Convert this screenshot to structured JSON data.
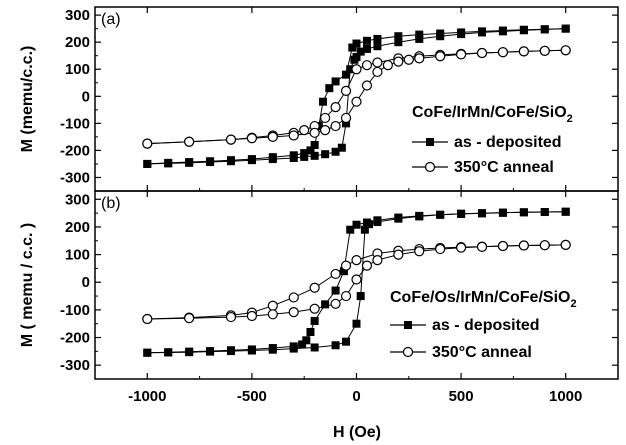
{
  "chart_data": [
    {
      "type": "line",
      "panel_label": "(a)",
      "ylabel": "M (memu/c.c.)",
      "xlabel": "",
      "xlim": [
        -1250,
        1250
      ],
      "ylim": [
        -350,
        330
      ],
      "yticks": [
        -300,
        -200,
        -100,
        0,
        100,
        200,
        300
      ],
      "xticks": [
        -1000,
        -500,
        0,
        500,
        1000
      ],
      "legend_title": "CoFe/IrMn/CoFe/SiO",
      "legend_title_sub": "2",
      "legend_placement": "right",
      "series": [
        {
          "name": "as - deposited",
          "marker": "filled-square",
          "branches": [
            {
              "x": [
                1000,
                900,
                800,
                700,
                600,
                500,
                400,
                300,
                200,
                100,
                50,
                0,
                -20,
                -50,
                -100,
                -130,
                -160,
                -180,
                -200,
                -220,
                -250,
                -300,
                -400,
                -500,
                -600,
                -700,
                -800,
                -900,
                -1000
              ],
              "y": [
                250,
                248,
                246,
                243,
                240,
                236,
                232,
                228,
                222,
                212,
                205,
                195,
                180,
                80,
                55,
                30,
                -20,
                -110,
                -180,
                -200,
                -210,
                -218,
                -225,
                -232,
                -236,
                -240,
                -243,
                -246,
                -250
              ]
            },
            {
              "x": [
                -1000,
                -900,
                -800,
                -700,
                -600,
                -500,
                -400,
                -300,
                -250,
                -200,
                -150,
                -100,
                -70,
                -50,
                -30,
                -10,
                0,
                20,
                50,
                100,
                200,
                300,
                400,
                500,
                600,
                700,
                800,
                900,
                1000
              ],
              "y": [
                -250,
                -248,
                -246,
                -243,
                -240,
                -236,
                -232,
                -228,
                -224,
                -220,
                -214,
                -205,
                -190,
                -100,
                100,
                135,
                145,
                165,
                175,
                185,
                200,
                212,
                222,
                230,
                236,
                240,
                244,
                247,
                250
              ]
            }
          ]
        },
        {
          "name": "350°C anneal",
          "marker": "open-circle",
          "branches": [
            {
              "x": [
                1000,
                900,
                800,
                700,
                600,
                500,
                400,
                300,
                200,
                100,
                50,
                0,
                -50,
                -100,
                -150,
                -200,
                -250,
                -300,
                -400,
                -500,
                -600,
                -800,
                -1000
              ],
              "y": [
                170,
                168,
                166,
                163,
                160,
                157,
                153,
                148,
                140,
                125,
                115,
                100,
                20,
                -40,
                -80,
                -110,
                -125,
                -135,
                -145,
                -153,
                -160,
                -168,
                -175
              ]
            },
            {
              "x": [
                -1000,
                -800,
                -600,
                -500,
                -400,
                -300,
                -200,
                -150,
                -100,
                -50,
                0,
                50,
                100,
                150,
                200,
                250,
                300,
                400,
                500,
                600,
                700,
                800,
                900,
                1000
              ],
              "y": [
                -175,
                -168,
                -160,
                -155,
                -150,
                -145,
                -135,
                -125,
                -110,
                -80,
                -20,
                40,
                90,
                115,
                128,
                135,
                140,
                148,
                155,
                160,
                163,
                166,
                168,
                170
              ]
            }
          ]
        }
      ]
    },
    {
      "type": "line",
      "panel_label": "(b)",
      "ylabel": "M ( memu / c.c. )",
      "xlabel": "H (Oe)",
      "xlim": [
        -1250,
        1250
      ],
      "ylim": [
        -350,
        330
      ],
      "yticks": [
        -300,
        -200,
        -100,
        0,
        100,
        200,
        300
      ],
      "xticks": [
        -1000,
        -500,
        0,
        500,
        1000
      ],
      "legend_title": "CoFe/Os/IrMn/CoFe/SiO",
      "legend_title_sub": "2",
      "legend_placement": "right",
      "series": [
        {
          "name": "as - deposited",
          "marker": "filled-square",
          "branches": [
            {
              "x": [
                1000,
                900,
                800,
                700,
                600,
                500,
                400,
                300,
                200,
                100,
                50,
                0,
                -30,
                -60,
                -100,
                -150,
                -200,
                -220,
                -240,
                -260,
                -300,
                -400,
                -500,
                -600,
                -700,
                -800,
                -900,
                -1000
              ],
              "y": [
                255,
                254,
                253,
                251,
                249,
                247,
                244,
                240,
                234,
                224,
                216,
                208,
                190,
                40,
                -30,
                -80,
                -140,
                -180,
                -210,
                -225,
                -232,
                -238,
                -243,
                -246,
                -249,
                -251,
                -253,
                -255
              ]
            },
            {
              "x": [
                -1000,
                -900,
                -800,
                -700,
                -600,
                -500,
                -400,
                -300,
                -200,
                -100,
                -50,
                0,
                20,
                40,
                60,
                100,
                200,
                300,
                400,
                500,
                600,
                700,
                800,
                900,
                1000
              ],
              "y": [
                -255,
                -254,
                -253,
                -251,
                -249,
                -247,
                -244,
                -240,
                -236,
                -228,
                -215,
                -150,
                -50,
                190,
                210,
                218,
                230,
                238,
                244,
                248,
                250,
                252,
                253,
                254,
                255
              ]
            }
          ]
        },
        {
          "name": "350°C anneal",
          "marker": "open-circle",
          "branches": [
            {
              "x": [
                1000,
                900,
                800,
                700,
                600,
                500,
                400,
                300,
                200,
                100,
                0,
                -50,
                -100,
                -200,
                -300,
                -400,
                -500,
                -600,
                -800,
                -1000
              ],
              "y": [
                135,
                134,
                133,
                131,
                129,
                127,
                124,
                120,
                114,
                104,
                80,
                60,
                30,
                -20,
                -55,
                -85,
                -110,
                -120,
                -128,
                -133
              ]
            },
            {
              "x": [
                -1000,
                -800,
                -600,
                -500,
                -400,
                -300,
                -200,
                -100,
                -50,
                0,
                50,
                100,
                200,
                300,
                400,
                500,
                600,
                700,
                800,
                900,
                1000
              ],
              "y": [
                -133,
                -130,
                -126,
                -122,
                -116,
                -108,
                -96,
                -78,
                -50,
                10,
                60,
                80,
                100,
                112,
                120,
                125,
                128,
                131,
                133,
                134,
                135
              ]
            }
          ]
        }
      ]
    }
  ]
}
